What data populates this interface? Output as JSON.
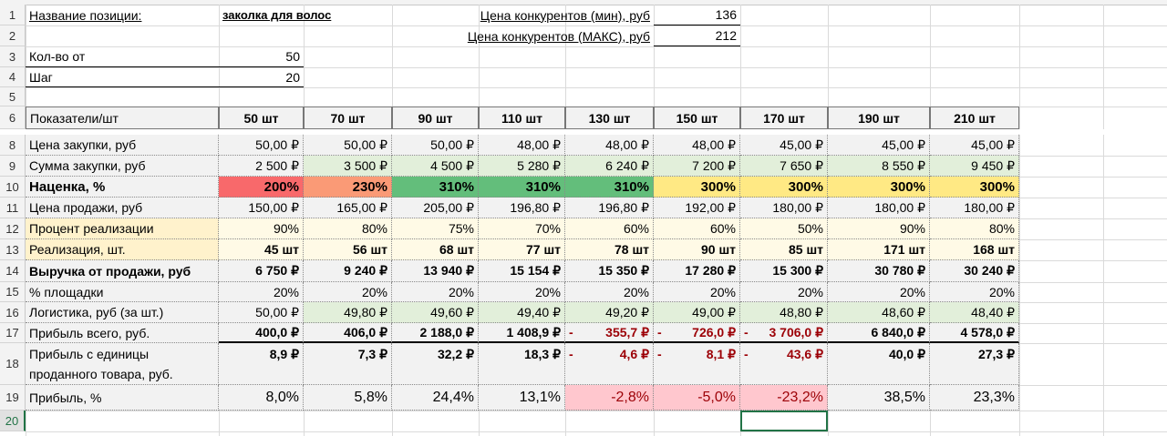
{
  "header": {
    "name_label": "Название позиции:",
    "name_value": "заколка для волос",
    "competitor_min_label": "Цена конкурентов (мин), руб",
    "competitor_min": "136",
    "competitor_max_label": "Цена конкурентов (МАКС), руб",
    "competitor_max": "212",
    "qty_from_label": "Кол-во от",
    "qty_from": "50",
    "step_label": "Шаг",
    "step": "20"
  },
  "row_numbers": [
    "1",
    "2",
    "3",
    "4",
    "5",
    "6",
    "8",
    "9",
    "10",
    "11",
    "12",
    "13",
    "14",
    "15",
    "16",
    "17",
    "18",
    "19",
    "20"
  ],
  "table": {
    "columns": [
      "Показатели/шт",
      "50 шт",
      "70 шт",
      "90 шт",
      "110 шт",
      "130 шт",
      "150 шт",
      "170 шт",
      "190 шт",
      "210 шт"
    ],
    "rows": [
      {
        "label": [
          "Цена закупки, руб"
        ],
        "cells": [
          "50,00 ₽",
          "50,00 ₽",
          "50,00 ₽",
          "48,00 ₽",
          "48,00 ₽",
          "48,00 ₽",
          "45,00 ₽",
          "45,00 ₽",
          "45,00 ₽"
        ]
      },
      {
        "label": [
          "Сумма закупки, руб"
        ],
        "cells": [
          "2 500 ₽",
          "3 500 ₽",
          "4 500 ₽",
          "5 280 ₽",
          "6 240 ₽",
          "7 200 ₽",
          "7 650 ₽",
          "8 550 ₽",
          "9 450 ₽"
        ]
      },
      {
        "label": [
          "Наценка, %"
        ],
        "cells": [
          "200%",
          "230%",
          "310%",
          "310%",
          "310%",
          "300%",
          "300%",
          "300%",
          "300%"
        ]
      },
      {
        "label": [
          "Цена  продажи, руб"
        ],
        "cells": [
          "150,00 ₽",
          "165,00 ₽",
          "205,00 ₽",
          "196,80 ₽",
          "196,80 ₽",
          "192,00 ₽",
          "180,00 ₽",
          "180,00 ₽",
          "180,00 ₽"
        ]
      },
      {
        "label": [
          "Процент реализации"
        ],
        "cells": [
          "90%",
          "80%",
          "75%",
          "70%",
          "60%",
          "60%",
          "50%",
          "90%",
          "80%"
        ]
      },
      {
        "label": [
          "Реализация, шт."
        ],
        "cells": [
          "45 шт",
          "56 шт",
          "68 шт",
          "77 шт",
          "78 шт",
          "90 шт",
          "85 шт",
          "171 шт",
          "168 шт"
        ]
      },
      {
        "label": [
          "Выручка от продажи, руб"
        ],
        "cells": [
          "6 750 ₽",
          "9 240 ₽",
          "13 940 ₽",
          "15 154 ₽",
          "15 350 ₽",
          "17 280 ₽",
          "15 300 ₽",
          "30 780 ₽",
          "30 240 ₽"
        ]
      },
      {
        "label": [
          "% площадки"
        ],
        "cells": [
          "20%",
          "20%",
          "20%",
          "20%",
          "20%",
          "20%",
          "20%",
          "20%",
          "20%"
        ]
      },
      {
        "label": [
          "Логистика, руб (за шт.)"
        ],
        "cells": [
          "50,00 ₽",
          "49,80 ₽",
          "49,60 ₽",
          "49,40 ₽",
          "49,20 ₽",
          "49,00 ₽",
          "48,80 ₽",
          "48,60 ₽",
          "48,40 ₽"
        ]
      },
      {
        "label": [
          "Прибыль всего, руб."
        ],
        "cells": [
          "400,0 ₽",
          "406,0 ₽",
          "2 188,0 ₽",
          "1 408,9 ₽",
          {
            "sign": "-",
            "text": "355,7 ₽"
          },
          {
            "sign": "-",
            "text": "726,0 ₽"
          },
          {
            "sign": "-",
            "text": "3 706,0 ₽"
          },
          "6 840,0 ₽",
          "4 578,0 ₽"
        ]
      },
      {
        "label": [
          "Прибыль с единицы",
          "проданного товара, руб."
        ],
        "cells": [
          "8,9 ₽",
          "7,3 ₽",
          "32,2 ₽",
          "18,3 ₽",
          {
            "sign": "-",
            "text": "4,6 ₽"
          },
          {
            "sign": "-",
            "text": "8,1 ₽"
          },
          {
            "sign": "-",
            "text": "43,6 ₽"
          },
          "40,0 ₽",
          "27,3 ₽"
        ]
      },
      {
        "label": [
          "Прибыль, %"
        ],
        "cells": [
          "8,0%",
          "5,8%",
          "24,4%",
          "13,1%",
          "-2,8%",
          "-5,0%",
          "-23,2%",
          "38,5%",
          "23,3%"
        ]
      }
    ]
  }
}
